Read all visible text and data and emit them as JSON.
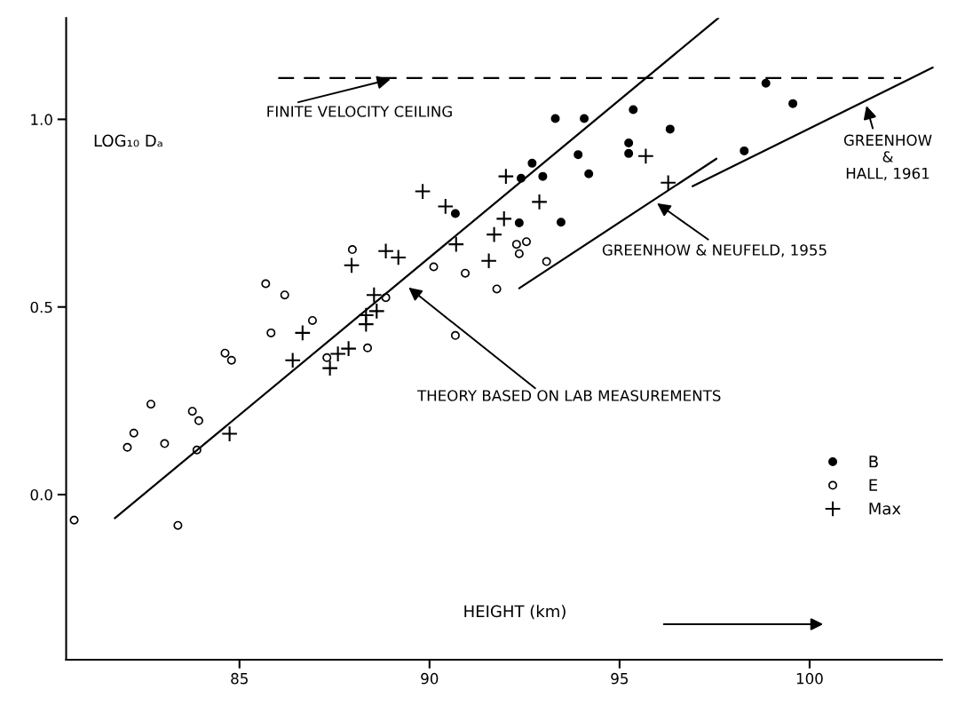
{
  "chart_data": {
    "type": "scatter",
    "xlabel": "HEIGHT (km)",
    "ylabel": "LOG₁₀ Dₐ",
    "xlim": [
      80.44,
      103.48
    ],
    "ylim": [
      -0.44,
      1.27
    ],
    "xticks": [
      85,
      90,
      95,
      100
    ],
    "yticks": [
      {
        "value": 0,
        "label": "0.0"
      },
      {
        "value": 0.5,
        "label": "0.5"
      },
      {
        "value": 1.0,
        "label": "1.0"
      }
    ],
    "grid": false,
    "legend": "bottom right",
    "series": [
      {
        "name": "B",
        "marker": "circle",
        "color": "#000000",
        "x": [
          90.68,
          92.36,
          93.46,
          92.41,
          92.98,
          94.19,
          93.31,
          94.07,
          95.36,
          96.33,
          95.24,
          95.24,
          93.91,
          92.7,
          98.28,
          98.85,
          99.56
        ],
        "values": [
          0.749,
          0.724,
          0.726,
          0.843,
          0.848,
          0.855,
          1.002,
          1.002,
          1.026,
          0.974,
          0.937,
          0.909,
          0.906,
          0.883,
          0.916,
          1.096,
          1.042
        ]
      },
      {
        "name": "E",
        "marker": "circle",
        "color": "#000000",
        "x": [
          80.65,
          82.05,
          82.22,
          82.67,
          83.03,
          83.38,
          83.76,
          83.88,
          83.93,
          84.62,
          84.79,
          85.69,
          85.83,
          86.19,
          86.92,
          87.3,
          87.97,
          88.37,
          88.85,
          90.11,
          90.68,
          90.94,
          91.77,
          92.29,
          92.36,
          92.55,
          93.08
        ],
        "values": [
          -0.068,
          0.126,
          0.164,
          0.241,
          0.136,
          -0.082,
          0.222,
          0.119,
          0.197,
          0.377,
          0.358,
          0.562,
          0.431,
          0.532,
          0.464,
          0.365,
          0.653,
          0.391,
          0.525,
          0.607,
          0.424,
          0.59,
          0.548,
          0.667,
          0.642,
          0.674,
          0.621
        ]
      },
      {
        "name": "Max",
        "marker": "cross",
        "color": "#000000",
        "x": [
          84.74,
          86.4,
          86.66,
          87.38,
          87.59,
          87.87,
          87.95,
          88.33,
          88.33,
          88.54,
          88.61,
          88.85,
          89.18,
          89.82,
          90.42,
          90.7,
          91.56,
          91.7,
          91.96,
          92.01,
          92.89,
          95.69,
          96.28
        ],
        "values": [
          0.162,
          0.358,
          0.431,
          0.337,
          0.375,
          0.389,
          0.611,
          0.454,
          0.478,
          0.532,
          0.489,
          0.649,
          0.632,
          0.808,
          0.768,
          0.667,
          0.623,
          0.693,
          0.735,
          0.848,
          0.78,
          0.902,
          0.831
        ]
      },
      {
        "type": "line",
        "line_style": "solid",
        "color": "#000000",
        "x": [
          81.72,
          97.6
        ],
        "values": [
          -0.063,
          1.27
        ]
      },
      {
        "type": "line",
        "line_style": "solid",
        "color": "#000000",
        "x": [
          92.36,
          97.55
        ],
        "values": [
          0.55,
          0.895
        ]
      },
      {
        "type": "line",
        "line_style": "solid",
        "color": "#000000",
        "x": [
          96.92,
          103.24
        ],
        "values": [
          0.822,
          1.138
        ]
      },
      {
        "type": "line",
        "line_style": "dashed",
        "color": "#000000",
        "x": [
          86.02,
          102.41
        ],
        "values": [
          1.11,
          1.11
        ]
      }
    ],
    "annotations": [
      {
        "text": "FINITE VELOCITY CEILING",
        "x": 89.1,
        "y": 1.11
      },
      "THEORY BASED ON LAB MEASUREMENTS",
      {
        "text": "GREENHOW & NEUFELD, 1955",
        "x": 95.88,
        "y": 0.784
      },
      {
        "text": "GREENHOW\n&\nHALL, 1961",
        "x": 101.46,
        "y": 1.049
      }
    ]
  }
}
